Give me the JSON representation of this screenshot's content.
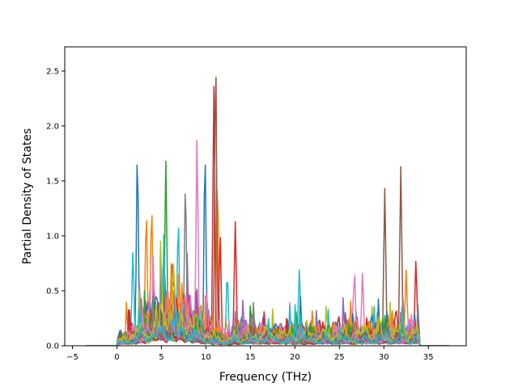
{
  "chart_data": {
    "type": "line",
    "title": "",
    "xlabel": "Frequency (THz)",
    "ylabel": "Partial Density of States",
    "xlim": [
      -5.86,
      39.25
    ],
    "ylim": [
      0,
      2.72
    ],
    "xticks": [
      -5,
      0,
      5,
      10,
      15,
      20,
      25,
      30,
      35
    ],
    "yticks": [
      0.0,
      0.5,
      1.0,
      1.5,
      2.0,
      2.5
    ],
    "x_range_of_series": [
      -3.5,
      37.3
    ],
    "nonzero_range": [
      0.0,
      34.0
    ],
    "grid": false,
    "legend": "none",
    "palette": [
      "#1f77b4",
      "#ff7f0e",
      "#2ca02c",
      "#d62728",
      "#9467bd",
      "#8c564b",
      "#e377c2",
      "#7f7f7f",
      "#bcbd22",
      "#17becf"
    ],
    "series_count": 40,
    "key_peaks": [
      {
        "x": 2.3,
        "y": 1.75,
        "color": "#1f77b4"
      },
      {
        "x": 3.3,
        "y": 1.21,
        "color": "#ff7f0e"
      },
      {
        "x": 3.9,
        "y": 1.26,
        "color": "#ff7f0e"
      },
      {
        "x": 1.8,
        "y": 0.86,
        "color": "#17becf"
      },
      {
        "x": 5.5,
        "y": 1.68,
        "color": "#2ca02c"
      },
      {
        "x": 6.9,
        "y": 1.14,
        "color": "#17becf"
      },
      {
        "x": 7.7,
        "y": 1.47,
        "color": "#7f7f7f"
      },
      {
        "x": 9.0,
        "y": 1.9,
        "color": "#e377c2"
      },
      {
        "x": 9.9,
        "y": 1.75,
        "color": "#1f77b4"
      },
      {
        "x": 10.9,
        "y": 2.36,
        "color": "#d62728"
      },
      {
        "x": 11.1,
        "y": 2.6,
        "color": "#8c564b"
      },
      {
        "x": 11.3,
        "y": 1.5,
        "color": "#ff7f0e"
      },
      {
        "x": 11.6,
        "y": 1.0,
        "color": "#d62728"
      },
      {
        "x": 13.3,
        "y": 1.13,
        "color": "#d62728"
      },
      {
        "x": 12.4,
        "y": 0.66,
        "color": "#17becf"
      },
      {
        "x": 20.5,
        "y": 0.69,
        "color": "#17becf"
      },
      {
        "x": 26.7,
        "y": 0.68,
        "color": "#e377c2"
      },
      {
        "x": 27.6,
        "y": 0.67,
        "color": "#e377c2"
      },
      {
        "x": 30.1,
        "y": 1.43,
        "color": "#8c564b"
      },
      {
        "x": 31.9,
        "y": 1.63,
        "color": "#8c564b"
      },
      {
        "x": 32.5,
        "y": 0.69,
        "color": "#ff7f0e"
      },
      {
        "x": 33.6,
        "y": 0.78,
        "color": "#d62728"
      }
    ]
  }
}
